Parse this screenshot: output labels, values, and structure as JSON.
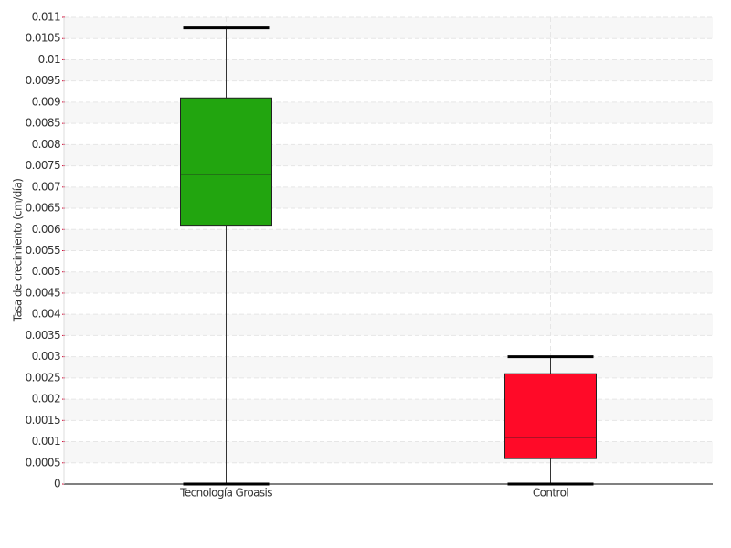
{
  "chart_data": {
    "type": "box",
    "y_label": "Tasa de crecimiento (cm/día)",
    "categories": [
      "Tecnología Groasis",
      "Control"
    ],
    "boxes": [
      {
        "color": "#22a50f",
        "min": 0,
        "q1": 0.0061,
        "median": 0.0073,
        "q3": 0.0091,
        "max": 0.01075
      },
      {
        "color": "#ff0a28",
        "min": 0,
        "q1": 0.0006,
        "median": 0.0011,
        "q3": 0.0026,
        "max": 0.003
      }
    ],
    "ylim": [
      0,
      0.011
    ],
    "yticks": [
      0,
      0.0005,
      0.001,
      0.0015,
      0.002,
      0.0025,
      0.003,
      0.0035,
      0.004,
      0.0045,
      0.005,
      0.0055,
      0.006,
      0.0065,
      0.007,
      0.0075,
      0.008,
      0.0085,
      0.009,
      0.0095,
      0.01,
      0.0105,
      0.011
    ],
    "grid": true
  }
}
